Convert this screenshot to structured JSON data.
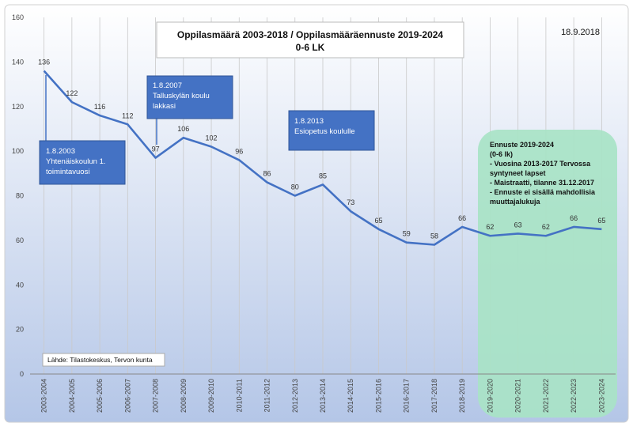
{
  "chart_data": {
    "type": "line",
    "title": "Oppilasmäärä 2003-2018 / Oppilasmääräennuste 2019-2024",
    "subtitle": "0-6 LK",
    "date": "18.9.2018",
    "source": "Lähde: Tilastokeskus, Tervon kunta",
    "ylim": [
      0,
      160
    ],
    "yticks": [
      0,
      20,
      40,
      60,
      80,
      100,
      120,
      140,
      160
    ],
    "grid": "vertical",
    "categories": [
      "2003-2004",
      "2004-2005",
      "2005-2006",
      "2006-2007",
      "2007-2008",
      "2008-2009",
      "2009-2010",
      "2010-2011",
      "2011-2012",
      "2012-2013",
      "2013-2014",
      "2014-2015",
      "2015-2016",
      "2016-2017",
      "2017-2018",
      "2018-2019",
      "2019-2020",
      "2020-2021",
      "2021-2022",
      "2022-2023",
      "2023-2024"
    ],
    "values": [
      136,
      122,
      116,
      112,
      97,
      106,
      102,
      96,
      86,
      80,
      85,
      73,
      65,
      59,
      58,
      66,
      62,
      63,
      62,
      66,
      65
    ],
    "annotations": [
      {
        "lines": [
          "1.8.2003",
          "Yhtenäiskoulun 1.",
          "toimintavuosi"
        ]
      },
      {
        "lines": [
          "1.8.2007",
          "Talluskylän koulu",
          "lakkasi"
        ]
      },
      {
        "lines": [
          "1.8.2013",
          "Esiopetus koululle"
        ]
      }
    ],
    "forecast": {
      "lines": [
        "Ennuste 2019-2024",
        "(0-6 lk)",
        "- Vuosina 2013-2017 Tervossa",
        "syntyneet lapset",
        "- Maistraatti, tilanne 31.12.2017",
        "- Ennuste ei sisällä mahdollisia",
        "muuttajalukuja"
      ]
    },
    "colors": {
      "line": "#4472C4",
      "annotation_fill": "#4472C4",
      "forecast_fill": "#A8E3C6",
      "background_top": "#ffffff",
      "background_bottom": "#B4C6E7"
    }
  }
}
